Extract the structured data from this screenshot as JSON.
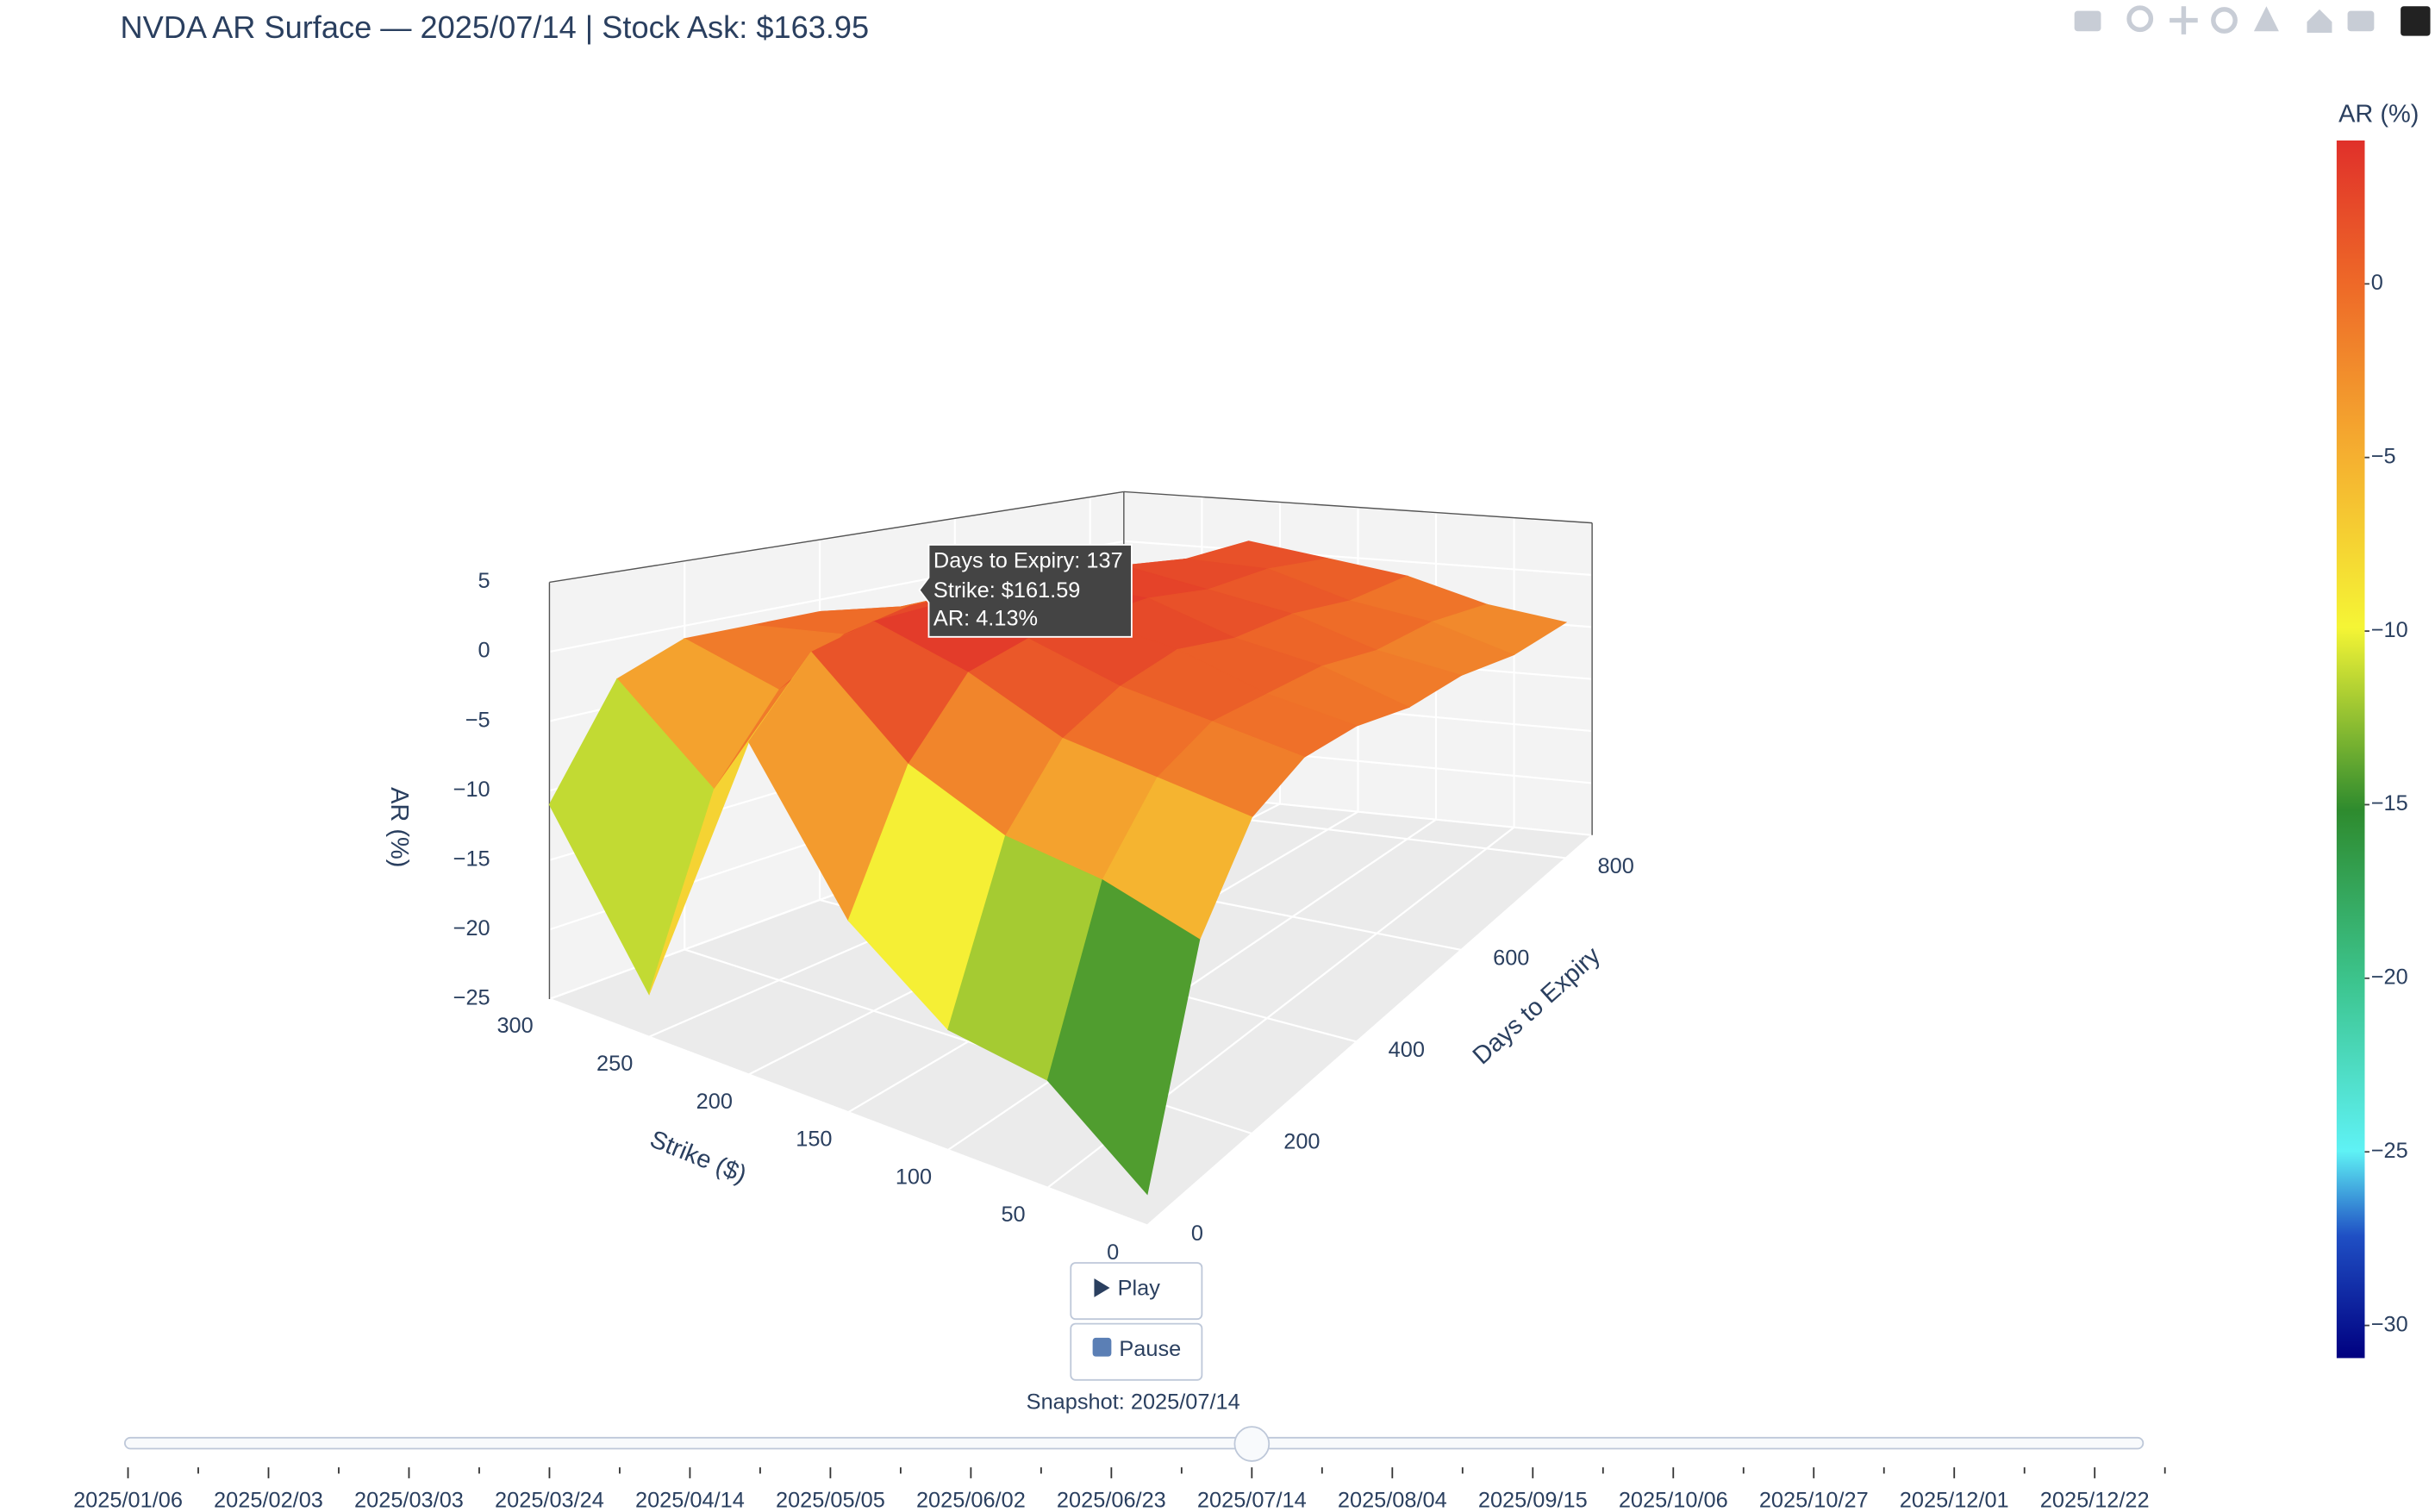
{
  "chart_data": {
    "type": "surface3d",
    "title": "NVDA AR Surface — 2025/07/14  |  Stock Ask: $163.95",
    "x_title": "Strike ($)",
    "y_title": "Days to Expiry",
    "z_title": "AR (%)",
    "colorbar_title": "AR (%)",
    "strikes": [
      0,
      50,
      100,
      150,
      200,
      250,
      300
    ],
    "days": [
      0,
      100,
      200,
      300,
      400,
      500,
      600,
      700,
      800
    ],
    "z": [
      [
        -23,
        -18,
        -17,
        -12,
        -2,
        -22,
        -11
      ],
      [
        -9,
        -7,
        -6,
        -3,
        3,
        -9,
        -3
      ],
      [
        -3,
        -2,
        -1,
        2,
        4,
        -3,
        -1
      ],
      [
        -1,
        0,
        1,
        3,
        4,
        0,
        -1
      ],
      [
        -1,
        0,
        2,
        3,
        4,
        1,
        -1
      ],
      [
        -2,
        0,
        1,
        3,
        3,
        1,
        -2
      ],
      [
        -2,
        -1,
        1,
        2,
        3,
        0,
        -2
      ],
      [
        -3,
        -1,
        0,
        2,
        2,
        0,
        -3
      ],
      [
        -3,
        -2,
        0,
        1,
        2,
        -1,
        -3
      ]
    ],
    "xlim": [
      0,
      300
    ],
    "ylim": [
      0,
      850
    ],
    "zlim": [
      -25,
      5
    ],
    "xticks": [
      0,
      50,
      100,
      150,
      200,
      250,
      300
    ],
    "yticks": [
      0,
      200,
      400,
      600,
      800
    ],
    "zticks": [
      {
        "value": -25,
        "label": "−25"
      },
      {
        "value": -20,
        "label": "−20"
      },
      {
        "value": -15,
        "label": "−15"
      },
      {
        "value": -10,
        "label": "−10"
      },
      {
        "value": -5,
        "label": "−5"
      },
      0,
      5
    ],
    "colorbar_lim": [
      -30.94,
      4.13
    ],
    "colorbar_ticks": [
      {
        "value": -30,
        "label": "−30"
      },
      {
        "value": -25,
        "label": "−25"
      },
      {
        "value": -20,
        "label": "−20"
      },
      {
        "value": -15,
        "label": "−15"
      },
      {
        "value": -10,
        "label": "−10"
      },
      {
        "value": -5,
        "label": "−5"
      },
      0
    ],
    "colorscale": [
      [
        0,
        "#000080"
      ],
      [
        0.1,
        "#1f4fc4"
      ],
      [
        0.17,
        "#5ff2f5"
      ],
      [
        0.31,
        "#3cc48d"
      ],
      [
        0.45,
        "#2e8b2e"
      ],
      [
        0.6,
        "#f5f535"
      ],
      [
        0.74,
        "#f5b030"
      ],
      [
        0.88,
        "#ee6a28"
      ],
      [
        1,
        "#e0302a"
      ]
    ],
    "hover_text": [
      "Days to Expiry: 137",
      "Strike: $161.59",
      "AR: 4.13%"
    ],
    "buttons": [
      "Play",
      "Pause"
    ],
    "slider_current_label": "Snapshot: 2025/07/14",
    "slider_active": 16,
    "slider_steps": [
      "2025/01/06",
      null,
      "2025/02/03",
      null,
      "2025/03/03",
      null,
      "2025/03/24",
      null,
      "2025/04/14",
      null,
      "2025/05/05",
      null,
      "2025/06/02",
      null,
      "2025/06/23",
      null,
      "2025/07/14",
      null,
      "2025/08/04",
      null,
      "2025/09/15",
      null,
      "2025/10/06",
      null,
      "2025/10/27",
      null,
      "2025/12/01",
      null,
      "2025/12/22",
      null
    ]
  }
}
